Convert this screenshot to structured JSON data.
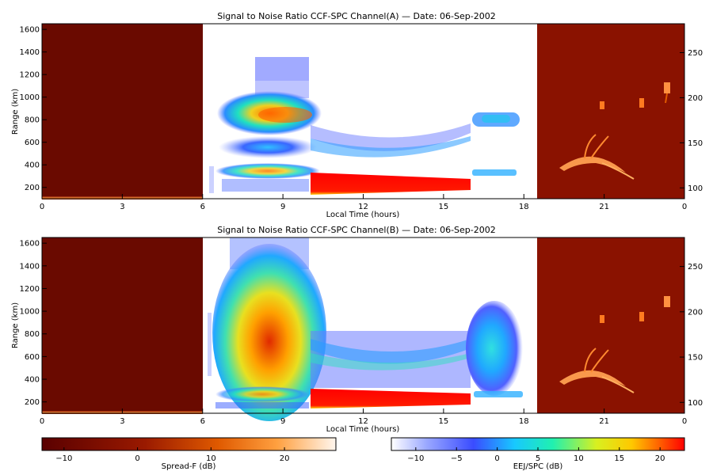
{
  "chart_data": [
    {
      "type": "heatmap",
      "title": "Signal to Noise Ratio CCF-SPC Channel(A) — Date: 06-Sep-2002",
      "xlabel": "Local Time (hours)",
      "ylabel": "Range (km)",
      "xlim": [
        0,
        24
      ],
      "x_ticks": [
        "0",
        "3",
        "6",
        "9",
        "12",
        "15",
        "18",
        "21",
        "0"
      ],
      "ylim": [
        100,
        1650
      ],
      "y_ticks": [
        "200",
        "400",
        "600",
        "800",
        "1000",
        "1200",
        "1400",
        "1600"
      ],
      "right_ylim": [
        88,
        282
      ],
      "right_y_ticks": [
        "100",
        "150",
        "200",
        "250"
      ],
      "segments": [
        {
          "name": "Spread-F",
          "x_range": [
            0,
            6
          ],
          "scale": "Spread-F (dB)",
          "features": [
            {
              "x": [
                0,
                6
              ],
              "range": [
                105,
                125
              ]
            }
          ]
        },
        {
          "name": "EEJ/SPC",
          "x_range": [
            6,
            18.5
          ],
          "scale": "EEJ/SPC (dB)",
          "features": [
            {
              "x": [
                6.8,
                10
              ],
              "range": [
                150,
                1350
              ]
            },
            {
              "x": [
                10,
                16
              ],
              "range": [
                150,
                320
              ]
            },
            {
              "x": [
                10,
                16
              ],
              "range": [
                450,
                760
              ]
            },
            {
              "x": [
                16,
                18
              ],
              "range": [
                300,
                860
              ]
            }
          ]
        },
        {
          "name": "Spread-F",
          "x_range": [
            18.5,
            24
          ],
          "scale": "Spread-F (dB)",
          "features": [
            {
              "x": [
                19.2,
                22.4
              ],
              "range_right": [
                102,
                148
              ]
            },
            {
              "x": [
                20.5,
                23.6
              ],
              "range_right": [
                180,
                212
              ]
            }
          ]
        }
      ]
    },
    {
      "type": "heatmap",
      "title": "Signal to Noise Ratio CCF-SPC Channel(B) — Date: 06-Sep-2002",
      "xlabel": "Local Time (hours)",
      "ylabel": "Range (km)",
      "xlim": [
        0,
        24
      ],
      "x_ticks": [
        "0",
        "3",
        "6",
        "9",
        "12",
        "15",
        "18",
        "21",
        "0"
      ],
      "ylim": [
        100,
        1650
      ],
      "y_ticks": [
        "200",
        "400",
        "600",
        "800",
        "1000",
        "1200",
        "1400",
        "1600"
      ],
      "right_ylim": [
        88,
        282
      ],
      "right_y_ticks": [
        "100",
        "150",
        "200",
        "250"
      ],
      "segments": [
        {
          "name": "Spread-F",
          "x_range": [
            0,
            6
          ],
          "scale": "Spread-F (dB)",
          "features": [
            {
              "x": [
                0,
                6
              ],
              "range": [
                105,
                125
              ]
            }
          ]
        },
        {
          "name": "EEJ/SPC",
          "x_range": [
            6,
            18.5
          ],
          "scale": "EEJ/SPC (dB)",
          "features": [
            {
              "x": [
                6.5,
                10
              ],
              "range": [
                150,
                1650
              ]
            },
            {
              "x": [
                10,
                16
              ],
              "range": [
                150,
                320
              ]
            },
            {
              "x": [
                10,
                16
              ],
              "range": [
                320,
                820
              ]
            },
            {
              "x": [
                16,
                18
              ],
              "range": [
                200,
                1120
              ]
            }
          ]
        },
        {
          "name": "Spread-F",
          "x_range": [
            18.5,
            24
          ],
          "scale": "Spread-F (dB)",
          "features": [
            {
              "x": [
                19.2,
                22.4
              ],
              "range_right": [
                102,
                148
              ]
            },
            {
              "x": [
                20.5,
                23.6
              ],
              "range_right": [
                180,
                212
              ]
            }
          ]
        }
      ]
    }
  ],
  "colorbars": [
    {
      "label": "Spread-F (dB)",
      "ticks": [
        "−10",
        "0",
        "10",
        "20"
      ],
      "range": [
        -13,
        27
      ],
      "palette": "hot"
    },
    {
      "label": "EEJ/SPC (dB)",
      "ticks": [
        "−10",
        "−5",
        "0",
        "5",
        "10",
        "15",
        "20"
      ],
      "range": [
        -13,
        23
      ],
      "palette": "rainbow"
    }
  ]
}
